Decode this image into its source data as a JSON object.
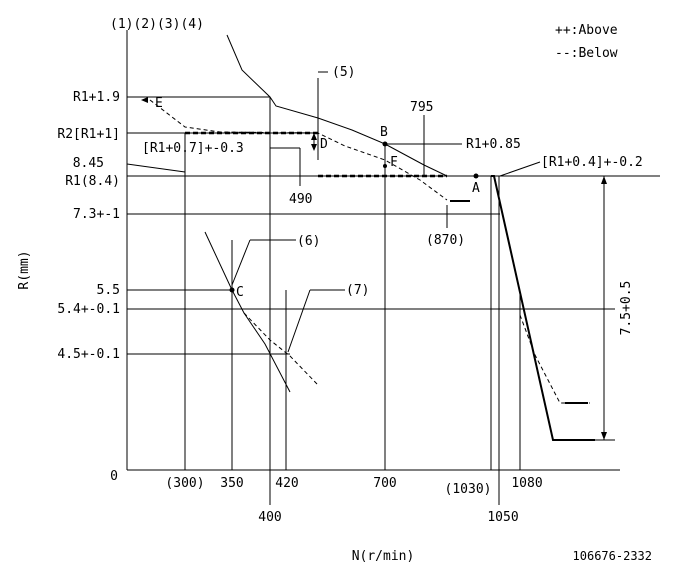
{
  "header": {
    "items_label": "(1)(2)(3)(4)",
    "legend_above": "++:Above",
    "legend_below": "--:Below"
  },
  "axes": {
    "y_label": "R(mm)",
    "x_label": "N(r/min)",
    "origin": "0"
  },
  "y_ticks": {
    "r1_plus_1_9": "R1+1.9",
    "r2": "R2[R1+1]",
    "v845": "8.45",
    "r1": "R1(8.4)",
    "v73": "7.3+-1",
    "v55": "5.5",
    "v54": "5.4+-0.1",
    "v45": "4.5+-0.1"
  },
  "x_ticks": {
    "x300": "(300)",
    "x350": "350",
    "x400": "400",
    "x420": "420",
    "x700": "700",
    "x1030": "(1030)",
    "x1050": "1050",
    "x1080": "1080"
  },
  "annotations": {
    "n5": "(5)",
    "n6": "(6)",
    "n7": "(7)",
    "v795": "795",
    "v490": "490",
    "v870": "(870)",
    "r1_07": "[R1+0.7]+-0.3",
    "r1_085": "R1+0.85",
    "r1_04": "[R1+0.4]+-0.2",
    "dim_75": "7.5+0.5"
  },
  "points": {
    "A": "A",
    "B": "B",
    "C": "C",
    "D": "D",
    "E": "E",
    "F": "F"
  },
  "footer": {
    "code": "106676-2332"
  }
}
